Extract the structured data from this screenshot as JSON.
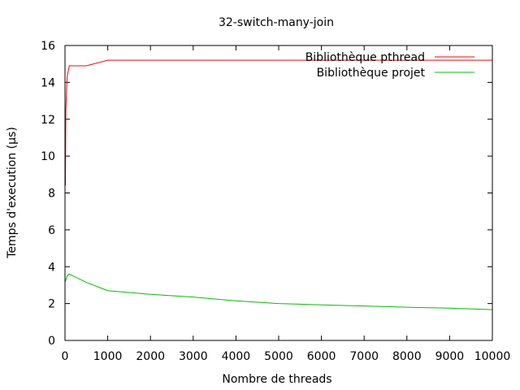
{
  "chart_data": {
    "type": "line",
    "title": "32-switch-many-join",
    "xlabel": "Nombre de threads",
    "ylabel": "Temps d'execution (µs)",
    "xlim": [
      0,
      10000
    ],
    "ylim": [
      0,
      16
    ],
    "xticks": [
      0,
      1000,
      2000,
      3000,
      4000,
      5000,
      6000,
      7000,
      8000,
      9000,
      10000
    ],
    "yticks": [
      0,
      2,
      4,
      6,
      8,
      10,
      12,
      14,
      16
    ],
    "grid": false,
    "legend_position": "top-right",
    "series": [
      {
        "name": "Bibliothèque pthread",
        "color": "#ff0000",
        "x": [
          10,
          20,
          50,
          100,
          500,
          1000,
          2000,
          3000,
          4000,
          5000,
          6000,
          7000,
          8000,
          9000,
          10000
        ],
        "y": [
          8.4,
          12.5,
          14.3,
          14.9,
          14.9,
          15.2,
          15.2,
          15.2,
          15.2,
          15.2,
          15.2,
          15.2,
          15.2,
          15.2,
          15.2
        ]
      },
      {
        "name": "Bibliothèque projet",
        "color": "#00c000",
        "x": [
          10,
          50,
          100,
          500,
          1000,
          2000,
          3000,
          4000,
          5000,
          6000,
          7000,
          8000,
          9000,
          10000
        ],
        "y": [
          3.2,
          3.5,
          3.6,
          3.15,
          2.7,
          2.5,
          2.35,
          2.15,
          2.0,
          1.93,
          1.87,
          1.8,
          1.75,
          1.67
        ]
      }
    ]
  }
}
